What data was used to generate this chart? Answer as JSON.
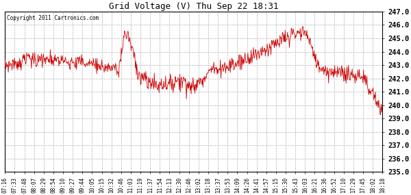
{
  "title": "Grid Voltage (V) Thu Sep 22 18:31",
  "copyright_text": "Copyright 2011 Cartronics.com",
  "line_color": "#cc0000",
  "bg_color": "#ffffff",
  "plot_bg_color": "#ffffff",
  "grid_color": "#b0b0b0",
  "ylim": [
    235.0,
    247.0
  ],
  "ytick_step": 1.0,
  "x_labels": [
    "07:16",
    "07:33",
    "07:48",
    "08:07",
    "08:29",
    "08:54",
    "09:10",
    "09:27",
    "09:44",
    "10:05",
    "10:15",
    "10:32",
    "10:46",
    "11:03",
    "11:19",
    "11:37",
    "11:54",
    "12:13",
    "12:30",
    "12:46",
    "13:02",
    "13:18",
    "13:37",
    "13:53",
    "14:09",
    "14:26",
    "14:41",
    "14:57",
    "15:15",
    "15:30",
    "15:43",
    "16:03",
    "16:21",
    "16:36",
    "16:52",
    "17:10",
    "17:29",
    "17:45",
    "18:02",
    "18:18"
  ],
  "seed": 7,
  "n_points": 800
}
